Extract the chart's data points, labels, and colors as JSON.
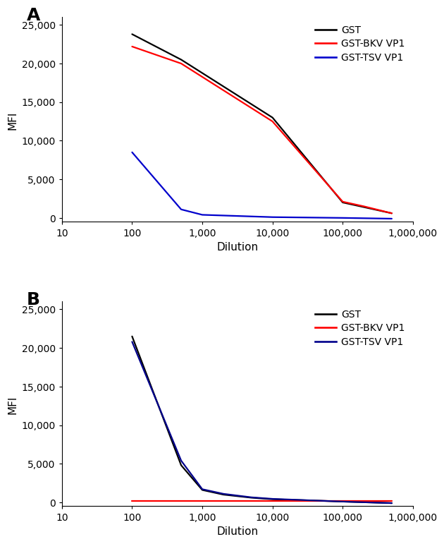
{
  "panel_A": {
    "label": "A",
    "xlabel": "Dilution",
    "ylabel": "MFI",
    "xlim": [
      10,
      1000000
    ],
    "ylim": [
      -700,
      26000
    ],
    "yticks": [
      0,
      5000,
      10000,
      15000,
      20000,
      25000
    ],
    "ytick_labels": [
      "0",
      "5,000",
      "10,000",
      "15,000",
      "20,000",
      "25,000"
    ],
    "xticks": [
      10,
      100,
      1000,
      10000,
      100000,
      1000000
    ],
    "xtick_labels": [
      "10",
      "100",
      "1,000",
      "10,000",
      "100,000",
      "1,000,000"
    ],
    "lines": [
      {
        "label": "GST",
        "color": "#000000",
        "x": [
          100,
          500,
          10000,
          100000,
          200000,
          500000
        ],
        "y": [
          23800,
          20500,
          13000,
          2000,
          1400,
          600
        ]
      },
      {
        "label": "GST-BKV VP1",
        "color": "#ff0000",
        "x": [
          100,
          500,
          10000,
          100000,
          200000,
          500000
        ],
        "y": [
          22200,
          20000,
          12500,
          2100,
          1500,
          600
        ]
      },
      {
        "label": "GST-TSV VP1",
        "color": "#0000cc",
        "x": [
          100,
          500,
          1000,
          10000,
          100000,
          500000
        ],
        "y": [
          8500,
          1100,
          400,
          100,
          0,
          -100
        ]
      }
    ]
  },
  "panel_B": {
    "label": "B",
    "xlabel": "Dilution",
    "ylabel": "MFI",
    "xlim": [
      10,
      1000000
    ],
    "ylim": [
      -700,
      26000
    ],
    "yticks": [
      0,
      5000,
      10000,
      15000,
      20000,
      25000
    ],
    "ytick_labels": [
      "0",
      "5,000",
      "10,000",
      "15,000",
      "20,000",
      "25,000"
    ],
    "xticks": [
      10,
      100,
      1000,
      10000,
      100000,
      1000000
    ],
    "xtick_labels": [
      "10",
      "100",
      "1,000",
      "10,000",
      "100,000",
      "1,000,000"
    ],
    "lines": [
      {
        "label": "GST",
        "color": "#000000",
        "x": [
          100,
          500,
          1000,
          2000,
          5000,
          10000,
          50000,
          100000,
          500000
        ],
        "y": [
          21500,
          4800,
          1600,
          1000,
          600,
          400,
          200,
          100,
          -100
        ]
      },
      {
        "label": "GST-BKV VP1",
        "color": "#ff0000",
        "x": [
          100,
          500000
        ],
        "y": [
          150,
          150
        ]
      },
      {
        "label": "GST-TSV VP1",
        "color": "#00008b",
        "x": [
          100,
          500,
          1000,
          2000,
          5000,
          10000,
          50000,
          100000,
          500000
        ],
        "y": [
          20800,
          5400,
          1700,
          1100,
          650,
          450,
          200,
          100,
          -100
        ]
      }
    ]
  },
  "linewidth": 1.6,
  "font_size": 10,
  "tick_font_size": 10,
  "label_font_size": 18
}
